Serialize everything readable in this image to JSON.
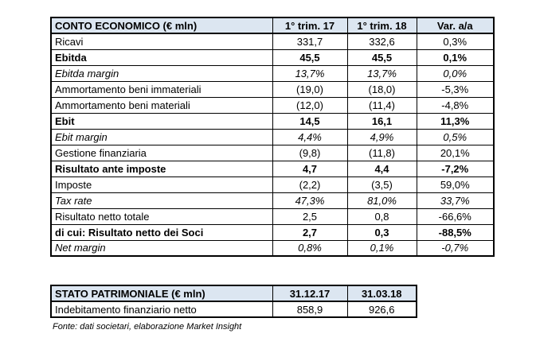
{
  "tables": [
    {
      "header": [
        "CONTO ECONOMICO (€ mln)",
        "1° trim. 17",
        "1° trim. 18",
        "Var. a/a"
      ],
      "rows": [
        {
          "style": "normal",
          "cells": [
            "Ricavi",
            "331,7",
            "332,6",
            "0,3%"
          ]
        },
        {
          "style": "bold",
          "cells": [
            "Ebitda",
            "45,5",
            "45,5",
            "0,1%"
          ]
        },
        {
          "style": "italic",
          "cells": [
            "Ebitda margin",
            "13,7%",
            "13,7%",
            "0,0%"
          ]
        },
        {
          "style": "normal",
          "cells": [
            "Ammortamento beni immateriali",
            "(19,0)",
            "(18,0)",
            "-5,3%"
          ]
        },
        {
          "style": "normal",
          "cells": [
            "Ammortamento beni materiali",
            "(12,0)",
            "(11,4)",
            "-4,8%"
          ]
        },
        {
          "style": "bold",
          "cells": [
            "Ebit",
            "14,5",
            "16,1",
            "11,3%"
          ]
        },
        {
          "style": "italic",
          "cells": [
            "Ebit margin",
            "4,4%",
            "4,9%",
            "0,5%"
          ]
        },
        {
          "style": "normal",
          "cells": [
            "Gestione finanziaria",
            "(9,8)",
            "(11,8)",
            "20,1%"
          ]
        },
        {
          "style": "bold",
          "cells": [
            "Risultato ante imposte",
            "4,7",
            "4,4",
            "-7,2%"
          ]
        },
        {
          "style": "normal",
          "cells": [
            "Imposte",
            "(2,2)",
            "(3,5)",
            "59,0%"
          ]
        },
        {
          "style": "italic",
          "cells": [
            "Tax rate",
            "47,3%",
            "81,0%",
            "33,7%"
          ]
        },
        {
          "style": "normal",
          "cells": [
            "Risultato netto totale",
            "2,5",
            "0,8",
            "-66,6%"
          ]
        },
        {
          "style": "bold",
          "cells": [
            "di cui: Risultato netto dei Soci",
            "2,7",
            "0,3",
            "-88,5%"
          ]
        },
        {
          "style": "italic",
          "cells": [
            "Net margin",
            "0,8%",
            "0,1%",
            "-0,7%"
          ]
        }
      ]
    },
    {
      "header": [
        "STATO PATRIMONIALE (€ mln)",
        "31.12.17",
        "31.03.18"
      ],
      "rows": [
        {
          "style": "normal",
          "cells": [
            "Indebitamento finanziario netto",
            "858,9",
            "926,6"
          ]
        }
      ]
    }
  ],
  "footnote": "Fonte: dati societari, elaborazione Market Insight"
}
